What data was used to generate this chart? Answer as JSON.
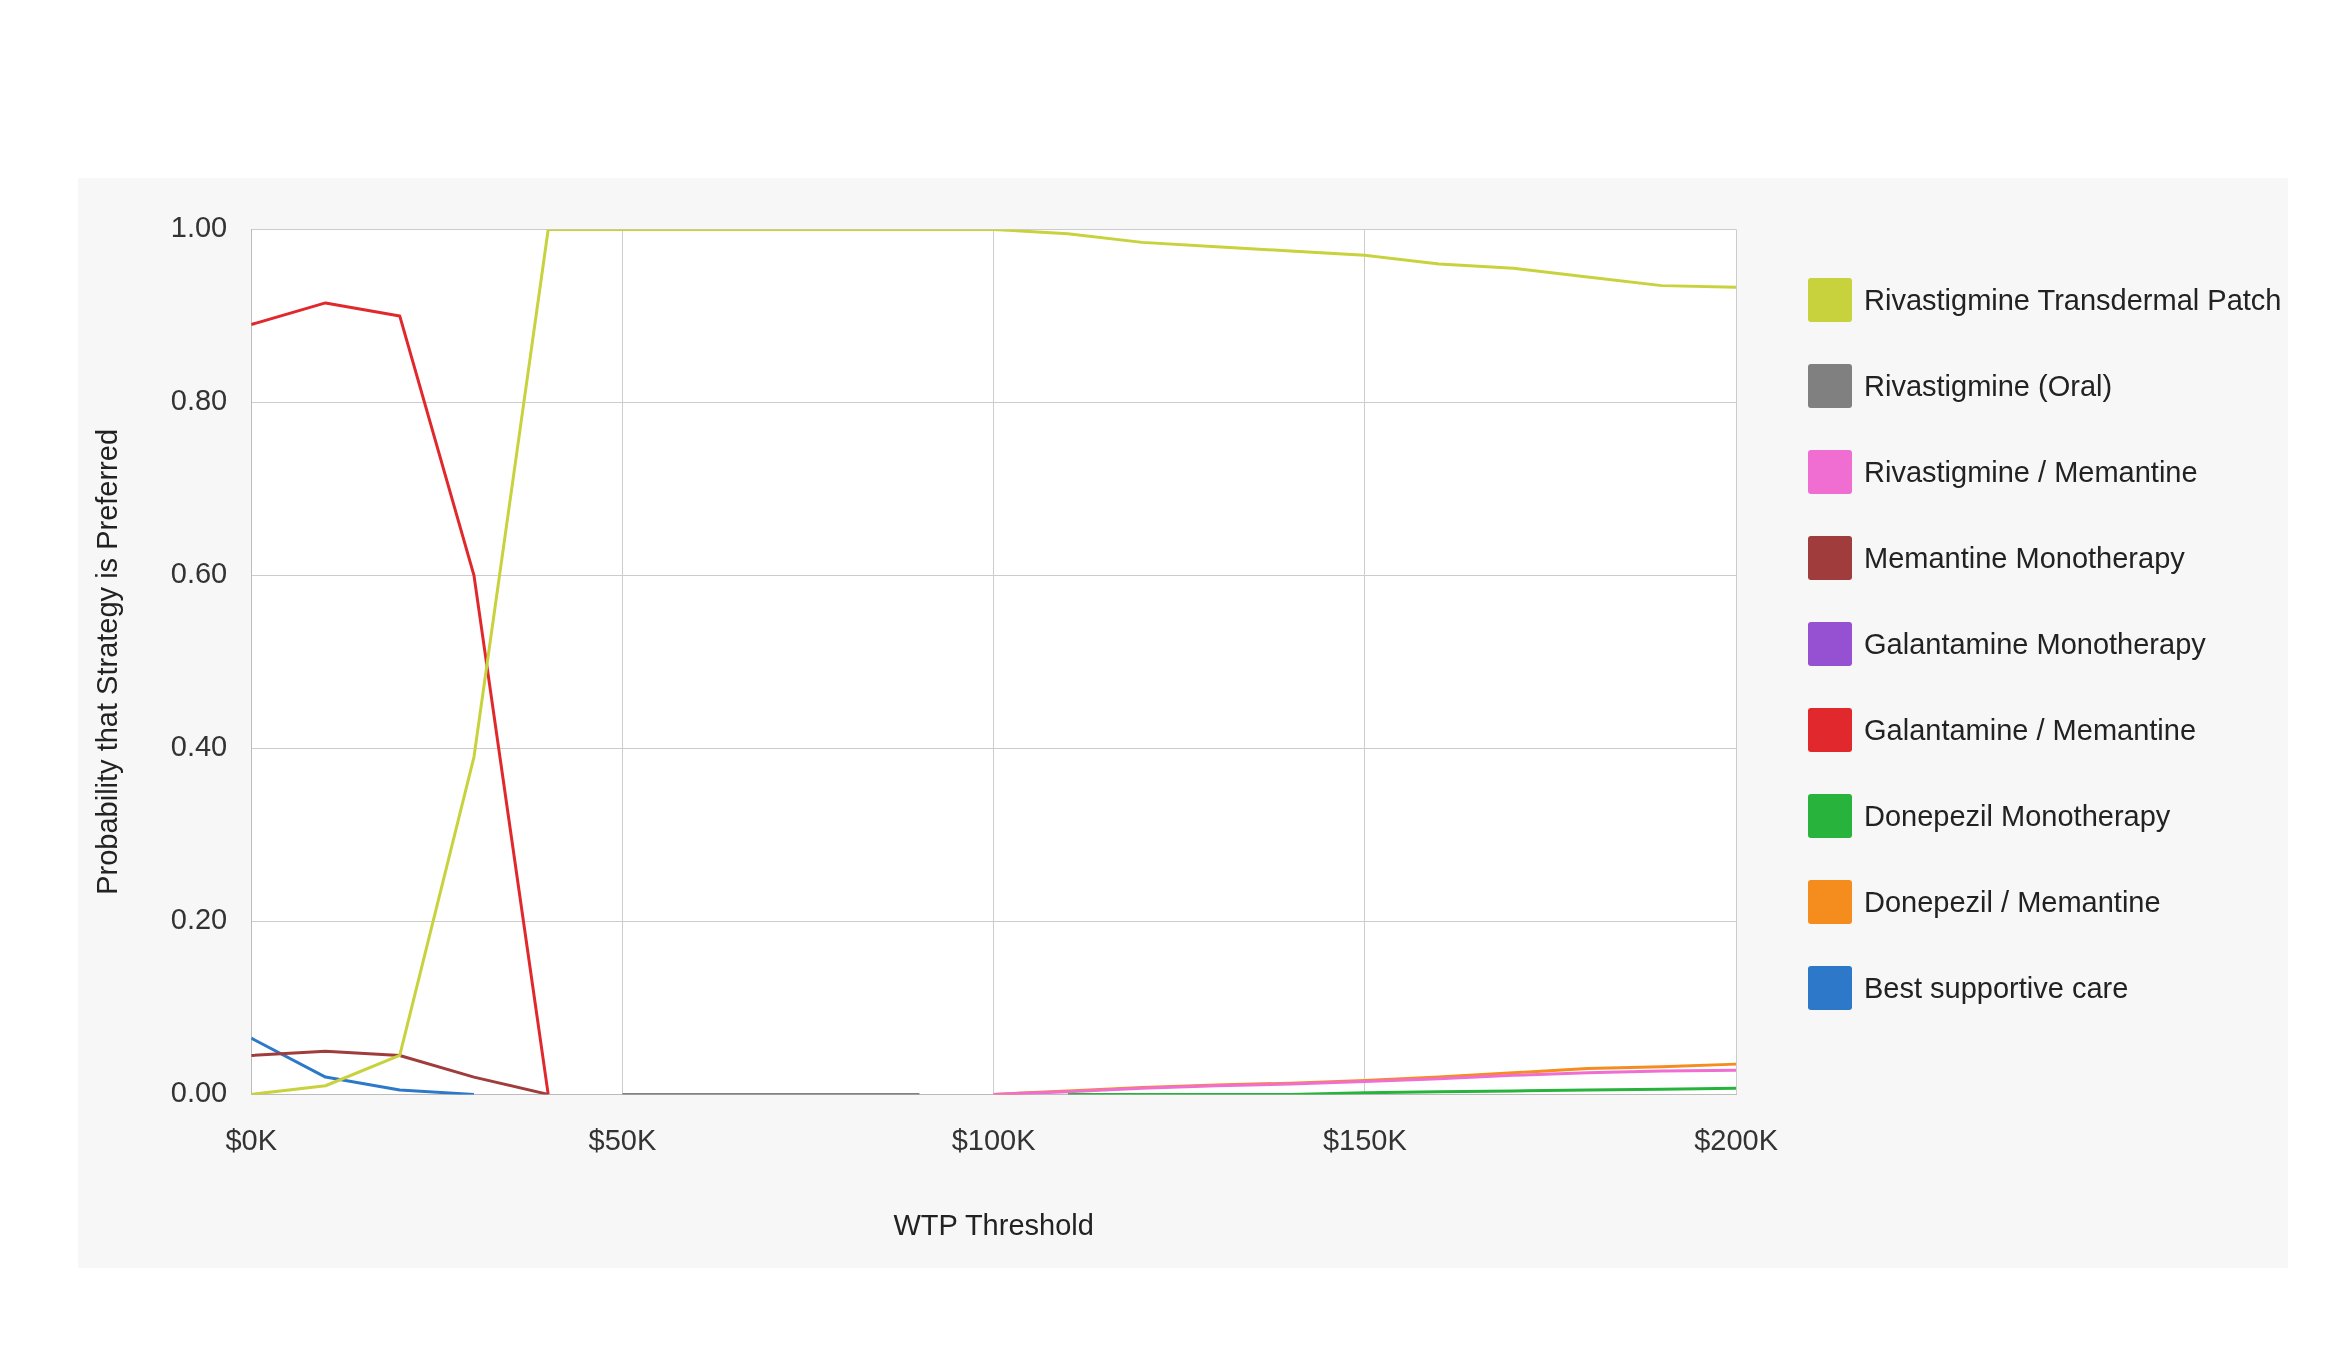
{
  "chart_data": {
    "type": "line",
    "xlabel": "WTP Threshold",
    "ylabel": "Probability that Strategy is Preferred",
    "x": [
      0,
      10000,
      20000,
      30000,
      40000,
      50000,
      60000,
      70000,
      80000,
      90000,
      100000,
      110000,
      120000,
      130000,
      140000,
      150000,
      160000,
      170000,
      180000,
      190000,
      200000
    ],
    "xlim": [
      0,
      200000
    ],
    "xticks": [
      {
        "value": 0,
        "label": "$0K"
      },
      {
        "value": 50000,
        "label": "$50K"
      },
      {
        "value": 100000,
        "label": "$100K"
      },
      {
        "value": 150000,
        "label": "$150K"
      },
      {
        "value": 200000,
        "label": "$200K"
      }
    ],
    "ylim": [
      0,
      1
    ],
    "yticks": [
      {
        "value": 0,
        "label": "0.00"
      },
      {
        "value": 0.2,
        "label": "0.20"
      },
      {
        "value": 0.4,
        "label": "0.40"
      },
      {
        "value": 0.6,
        "label": "0.60"
      },
      {
        "value": 0.8,
        "label": "0.80"
      },
      {
        "value": 1,
        "label": "1.00"
      }
    ],
    "grid": true,
    "legend": "right",
    "marker": "none",
    "line_style": "solid",
    "series": [
      {
        "name": "Rivastigmine Transdermal Patch",
        "color": "#c8d23c",
        "values": [
          0,
          0.01,
          0.045,
          0.39,
          1,
          1,
          1,
          1,
          1,
          1,
          1,
          0.995,
          0.985,
          0.98,
          0.975,
          0.97,
          0.96,
          0.955,
          0.945,
          0.935,
          0.933
        ]
      },
      {
        "name": "Rivastigmine (Oral)",
        "color": "#808080",
        "values": [
          null,
          null,
          null,
          null,
          null,
          0,
          0,
          0,
          0,
          0,
          null,
          null,
          null,
          null,
          null,
          null,
          null,
          null,
          null,
          null,
          null
        ]
      },
      {
        "name": "Rivastigmine / Memantine",
        "color": "#f06ed2",
        "values": [
          null,
          null,
          null,
          null,
          null,
          null,
          null,
          null,
          null,
          null,
          0,
          0.003,
          0.007,
          0.01,
          0.012,
          0.015,
          0.018,
          0.022,
          0.025,
          0.027,
          0.028
        ]
      },
      {
        "name": "Memantine Monotherapy",
        "color": "#a03c3c",
        "values": [
          0.045,
          0.05,
          0.045,
          0.02,
          0,
          null,
          null,
          null,
          null,
          null,
          null,
          null,
          null,
          null,
          null,
          null,
          null,
          null,
          null,
          null,
          null
        ]
      },
      {
        "name": "Galantamine Monotherapy",
        "color": "#9650d2",
        "values": [
          null,
          null,
          null,
          null,
          null,
          null,
          null,
          null,
          null,
          null,
          null,
          null,
          null,
          null,
          null,
          null,
          null,
          null,
          null,
          null,
          null
        ]
      },
      {
        "name": "Galantamine / Memantine",
        "color": "#e0282d",
        "values": [
          0.89,
          0.915,
          0.9,
          0.6,
          0,
          null,
          null,
          null,
          null,
          null,
          null,
          null,
          null,
          null,
          null,
          null,
          null,
          null,
          null,
          null,
          null
        ]
      },
      {
        "name": "Donepezil Monotherapy",
        "color": "#28b43c",
        "values": [
          null,
          null,
          null,
          null,
          null,
          null,
          null,
          null,
          null,
          null,
          null,
          0,
          0,
          0,
          0,
          0.002,
          0.003,
          0.004,
          0.005,
          0.006,
          0.007
        ]
      },
      {
        "name": "Donepezil / Memantine",
        "color": "#f58c1e",
        "values": [
          null,
          null,
          null,
          null,
          null,
          null,
          null,
          null,
          null,
          null,
          0,
          0.004,
          0.008,
          0.011,
          0.013,
          0.016,
          0.02,
          0.025,
          0.03,
          0.032,
          0.035
        ]
      },
      {
        "name": "Best supportive care",
        "color": "#2d78c8",
        "values": [
          0.065,
          0.02,
          0.005,
          0,
          null,
          null,
          null,
          null,
          null,
          null,
          null,
          null,
          null,
          null,
          null,
          null,
          null,
          null,
          null,
          null,
          null
        ]
      }
    ]
  }
}
